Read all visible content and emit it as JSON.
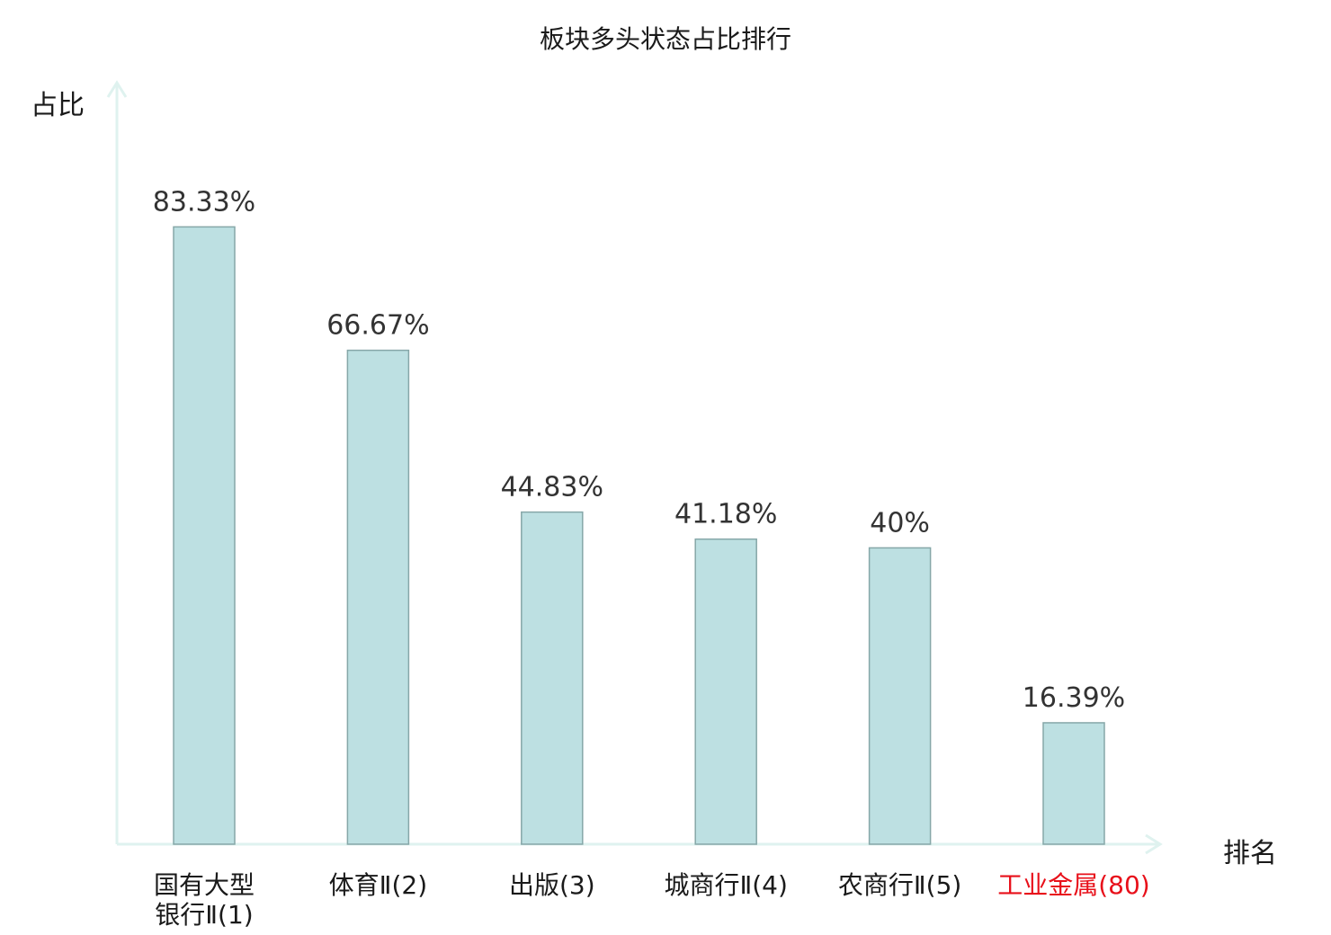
{
  "chart_data": {
    "type": "bar",
    "title": "板块多头状态占比排行",
    "ylabel": "占比",
    "xlabel": "排名",
    "categories": [
      [
        "国有大型",
        "银行Ⅱ(1)"
      ],
      [
        "体育Ⅱ(2)"
      ],
      [
        "出版(3)"
      ],
      [
        "城商行Ⅱ(4)"
      ],
      [
        "农商行Ⅱ(5)"
      ],
      [
        "工业金属(80)"
      ]
    ],
    "values": [
      83.33,
      66.67,
      44.83,
      41.18,
      40,
      16.39
    ],
    "value_labels": [
      "83.33%",
      "66.67%",
      "44.83%",
      "41.18%",
      "40%",
      "16.39%"
    ],
    "highlight": [
      false,
      false,
      false,
      false,
      false,
      true
    ],
    "ylim": [
      0,
      100
    ],
    "grid": false,
    "colors": {
      "bar_fill": "#bde0e2",
      "bar_stroke": "#86a7a8",
      "axis": "#dff2ef",
      "text": "#1a1a1a",
      "value_label": "#333333",
      "highlight": "#e8101a"
    }
  }
}
